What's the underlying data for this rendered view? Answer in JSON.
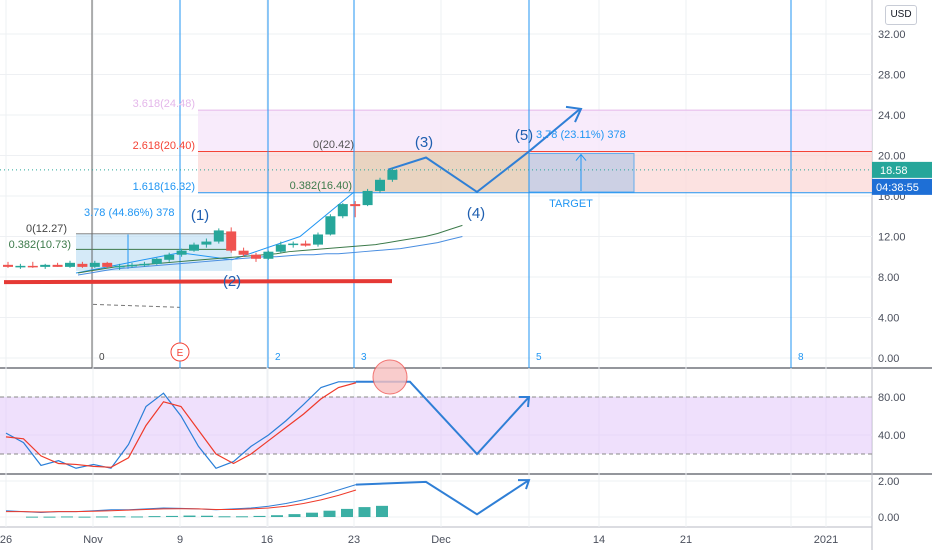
{
  "toolbar": {
    "currency": "USD"
  },
  "colors": {
    "grid": "#eef0f3",
    "axis_text": "#4a4f5c",
    "bull": "#26a69a",
    "bear": "#ef5350",
    "wave_blue": "#2f7fd6",
    "wave_label": "#1f5fb0",
    "vline": "#2196f3",
    "fib_red": "#f44336",
    "fib_violet": "#e4b7ea",
    "ma_green": "#3c7a4a",
    "ma_blue": "#4a8ee0",
    "k_line": "#2a7fd8",
    "d_line": "#ef3a2a",
    "stoch_band": "#e1c7fa",
    "macd_hist": "#26a69a",
    "support_red": "#e53935",
    "last_price_bg": "#26a69a",
    "countdown_bg": "#1e6fd6"
  },
  "chart_data": [
    {
      "type": "candlestick",
      "title": "",
      "x_tick_labels": [
        "26",
        "Nov",
        "9",
        "16",
        "23",
        "Dec",
        "14",
        "21",
        "2021"
      ],
      "y_ticks": [
        0.0,
        4.0,
        8.0,
        12.0,
        16.0,
        20.0,
        24.0,
        28.0,
        32.0
      ],
      "y_tick_labels": [
        "0.00",
        "4.00",
        "8.00",
        "12.00",
        "16.00",
        "20.00",
        "24.00",
        "28.00",
        "32.00"
      ],
      "ylim": [
        -0.5,
        35.0
      ],
      "candles": [
        {
          "o": 9.2,
          "h": 9.5,
          "l": 8.9,
          "c": 9.0
        },
        {
          "o": 9.0,
          "h": 9.3,
          "l": 8.8,
          "c": 9.1
        },
        {
          "o": 9.1,
          "h": 9.5,
          "l": 8.9,
          "c": 9.0
        },
        {
          "o": 9.0,
          "h": 9.3,
          "l": 8.8,
          "c": 9.2
        },
        {
          "o": 9.2,
          "h": 9.4,
          "l": 9.0,
          "c": 9.0
        },
        {
          "o": 9.0,
          "h": 9.6,
          "l": 8.9,
          "c": 9.4
        },
        {
          "o": 9.3,
          "h": 9.5,
          "l": 8.9,
          "c": 9.0
        },
        {
          "o": 9.0,
          "h": 9.6,
          "l": 8.9,
          "c": 9.4
        },
        {
          "o": 9.4,
          "h": 9.5,
          "l": 8.9,
          "c": 9.0
        },
        {
          "o": 9.0,
          "h": 9.3,
          "l": 8.7,
          "c": 9.1
        },
        {
          "o": 9.1,
          "h": 9.4,
          "l": 8.9,
          "c": 9.2
        },
        {
          "o": 9.2,
          "h": 9.5,
          "l": 9.0,
          "c": 9.3
        },
        {
          "o": 9.3,
          "h": 9.9,
          "l": 9.2,
          "c": 9.8
        },
        {
          "o": 9.7,
          "h": 10.4,
          "l": 9.5,
          "c": 10.2
        },
        {
          "o": 10.2,
          "h": 10.8,
          "l": 10.0,
          "c": 10.6
        },
        {
          "o": 10.6,
          "h": 11.4,
          "l": 10.5,
          "c": 11.2
        },
        {
          "o": 11.2,
          "h": 11.8,
          "l": 10.9,
          "c": 11.5
        },
        {
          "o": 11.5,
          "h": 12.8,
          "l": 11.3,
          "c": 12.6
        },
        {
          "o": 12.5,
          "h": 12.9,
          "l": 10.4,
          "c": 10.6
        },
        {
          "o": 10.6,
          "h": 10.9,
          "l": 10.0,
          "c": 10.2
        },
        {
          "o": 10.2,
          "h": 10.4,
          "l": 9.5,
          "c": 9.8
        },
        {
          "o": 9.8,
          "h": 10.6,
          "l": 9.7,
          "c": 10.5
        },
        {
          "o": 10.5,
          "h": 11.5,
          "l": 10.4,
          "c": 11.2
        },
        {
          "o": 11.2,
          "h": 11.5,
          "l": 10.9,
          "c": 11.3
        },
        {
          "o": 11.3,
          "h": 11.6,
          "l": 11.0,
          "c": 11.1
        },
        {
          "o": 11.2,
          "h": 12.4,
          "l": 11.0,
          "c": 12.2
        },
        {
          "o": 12.2,
          "h": 14.2,
          "l": 12.1,
          "c": 14.0
        },
        {
          "o": 14.0,
          "h": 15.3,
          "l": 13.8,
          "c": 15.2
        },
        {
          "o": 15.2,
          "h": 15.5,
          "l": 13.9,
          "c": 15.0
        },
        {
          "o": 15.1,
          "h": 16.7,
          "l": 15.0,
          "c": 16.5
        },
        {
          "o": 16.5,
          "h": 17.8,
          "l": 16.3,
          "c": 17.6
        },
        {
          "o": 17.6,
          "h": 18.8,
          "l": 17.4,
          "c": 18.58
        }
      ],
      "moving_averages": [
        {
          "color_key": "ma_green",
          "values": [
            8.4,
            8.6,
            8.8,
            9.0,
            9.1,
            9.2,
            9.3,
            9.4,
            9.5,
            9.6,
            9.7,
            9.8,
            9.9,
            10.0,
            10.1,
            10.2,
            10.3,
            10.5,
            10.6,
            10.7,
            10.8,
            10.9,
            11.0,
            11.1,
            11.2,
            11.4,
            11.6,
            11.8,
            12.0,
            12.3,
            12.7,
            13.1
          ]
        },
        {
          "color_key": "ma_blue",
          "values": [
            8.2,
            8.4,
            8.6,
            8.8,
            8.9,
            9.0,
            9.1,
            9.2,
            9.3,
            9.4,
            9.5,
            9.6,
            9.7,
            9.8,
            9.9,
            10.0,
            10.0,
            10.1,
            10.2,
            10.2,
            10.3,
            10.3,
            10.4,
            10.5,
            10.6,
            10.7,
            10.8,
            11.0,
            11.2,
            11.4,
            11.7,
            12.0
          ]
        }
      ],
      "last_price": "18.58",
      "countdown": "04:38:55",
      "support_level": 7.5,
      "vertical_labels": [
        "0",
        "E",
        "2",
        "3",
        "5",
        "8"
      ],
      "annotations": {
        "fib_a": {
          "levels": [
            "0(12.27)",
            "0.382(10.73)"
          ],
          "measure": "3.78 (44.86%) 378"
        },
        "fib_b": {
          "levels": [
            "3.618(24.48)",
            "2.618(20.40)",
            "1.618(16.32)",
            "0(20.42)",
            "0.382(16.40)"
          ],
          "values": [
            24.48,
            20.4,
            16.32,
            20.42,
            16.4
          ]
        },
        "target": {
          "measure": "3.78 (23.11%) 378",
          "label": "TARGET"
        },
        "waves": [
          "(1)",
          "(2)",
          "(3)",
          "(4)",
          "(5)"
        ]
      }
    },
    {
      "type": "line",
      "title": "",
      "y_ticks": [
        40,
        80
      ],
      "y_tick_labels": [
        "40.00",
        "80.00"
      ],
      "ylim": [
        -5,
        110
      ],
      "band": [
        20,
        80
      ],
      "series": [
        {
          "color_key": "k_line",
          "values": [
            42,
            32,
            8,
            13,
            5,
            9,
            5,
            30,
            70,
            84,
            60,
            28,
            5,
            12,
            28,
            40,
            55,
            72,
            90,
            96,
            96
          ]
        },
        {
          "color_key": "d_line",
          "values": [
            38,
            36,
            18,
            10,
            9,
            7,
            6,
            16,
            50,
            75,
            70,
            45,
            20,
            10,
            20,
            34,
            48,
            62,
            78,
            90,
            95
          ]
        }
      ],
      "projection": [
        96,
        20,
        80
      ]
    },
    {
      "type": "line",
      "title": "",
      "y_ticks": [
        0,
        2
      ],
      "y_tick_labels": [
        "0.00",
        "2.00"
      ],
      "ylim": [
        -0.8,
        2.5
      ],
      "series": [
        {
          "color_key": "wave_blue",
          "values": [
            0.35,
            0.3,
            0.25,
            0.3,
            0.3,
            0.35,
            0.4,
            0.4,
            0.45,
            0.5,
            0.48,
            0.45,
            0.4,
            0.45,
            0.5,
            0.6,
            0.75,
            0.95,
            1.2,
            1.5,
            1.8
          ]
        },
        {
          "color_key": "d_line",
          "values": [
            0.3,
            0.3,
            0.28,
            0.3,
            0.3,
            0.32,
            0.35,
            0.38,
            0.42,
            0.45,
            0.46,
            0.45,
            0.42,
            0.42,
            0.45,
            0.5,
            0.6,
            0.75,
            0.95,
            1.2,
            1.5
          ]
        }
      ],
      "histogram": [
        0.02,
        0.02,
        0.03,
        0.02,
        0.03,
        0.04,
        0.03,
        0.05,
        0.06,
        0.08,
        0.07,
        0.04,
        0.04,
        0.06,
        0.1,
        0.16,
        0.24,
        0.35,
        0.45,
        0.55,
        0.62
      ],
      "projection": [
        1.95,
        0.15,
        2.05
      ]
    }
  ]
}
